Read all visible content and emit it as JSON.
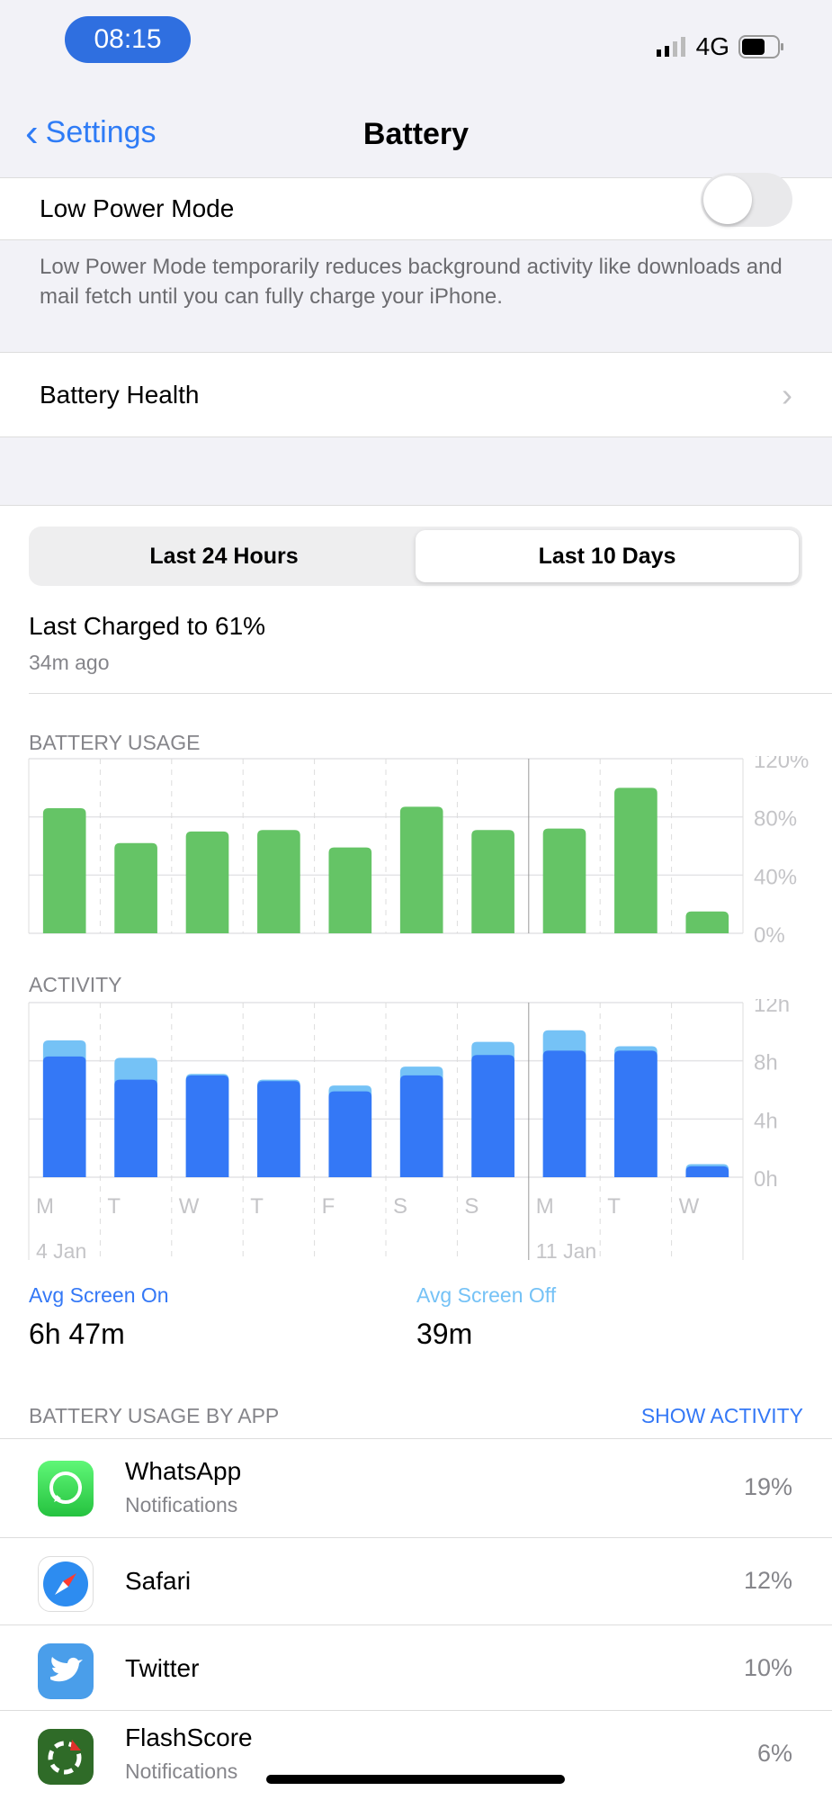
{
  "status": {
    "time": "08:15",
    "network": "4G",
    "battery_level": 0.6
  },
  "nav": {
    "back_label": "Settings",
    "title": "Battery"
  },
  "low_power": {
    "label": "Low Power Mode",
    "enabled": false,
    "description": "Low Power Mode temporarily reduces background activity like downloads and mail fetch until you can fully charge your iPhone."
  },
  "battery_health": {
    "label": "Battery Health"
  },
  "segments": [
    "Last 24 Hours",
    "Last 10 Days"
  ],
  "selected_segment": "Last 10 Days",
  "last_charged": {
    "title": "Last Charged to 61%",
    "ago": "34m ago"
  },
  "chart_data": [
    {
      "type": "bar",
      "title": "BATTERY USAGE",
      "categories": [
        "M",
        "T",
        "W",
        "T",
        "F",
        "S",
        "S",
        "M",
        "T",
        "W"
      ],
      "yticks": [
        "120%",
        "80%",
        "40%",
        "0%"
      ],
      "ylim": [
        0,
        120
      ],
      "values": [
        86,
        62,
        70,
        71,
        59,
        87,
        71,
        72,
        100,
        15
      ],
      "color": "#65c466"
    },
    {
      "type": "bar",
      "title": "ACTIVITY",
      "categories": [
        "M",
        "T",
        "W",
        "T",
        "F",
        "S",
        "S",
        "M",
        "T",
        "W"
      ],
      "date_labels": [
        "4 Jan",
        "11 Jan"
      ],
      "yticks": [
        "12h",
        "8h",
        "4h",
        "0h"
      ],
      "ylim": [
        0,
        12
      ],
      "stacked": true,
      "series": [
        {
          "values": [
            8.3,
            6.7,
            7.0,
            6.6,
            5.9,
            7.0,
            8.4,
            8.7,
            8.7,
            0.75
          ],
          "color": "#3478f6"
        },
        {
          "values": [
            1.1,
            1.5,
            0.1,
            0.1,
            0.4,
            0.6,
            0.9,
            1.4,
            0.3,
            0.15
          ],
          "color": "#75c2f6"
        }
      ]
    }
  ],
  "averages": {
    "on_label": "Avg Screen On",
    "on_value": "6h 47m",
    "off_label": "Avg Screen Off",
    "off_value": "39m"
  },
  "apps_header": {
    "label": "BATTERY USAGE BY APP",
    "action": "SHOW ACTIVITY"
  },
  "apps": [
    {
      "name": "WhatsApp",
      "sub": "Notifications",
      "pct": "19%",
      "icon": "whatsapp-icon"
    },
    {
      "name": "Safari",
      "sub": "",
      "pct": "12%",
      "icon": "safari-icon"
    },
    {
      "name": "Twitter",
      "sub": "",
      "pct": "10%",
      "icon": "twitter-icon"
    },
    {
      "name": "FlashScore",
      "sub": "Notifications",
      "pct": "6%",
      "icon": "flashscore-icon"
    }
  ]
}
